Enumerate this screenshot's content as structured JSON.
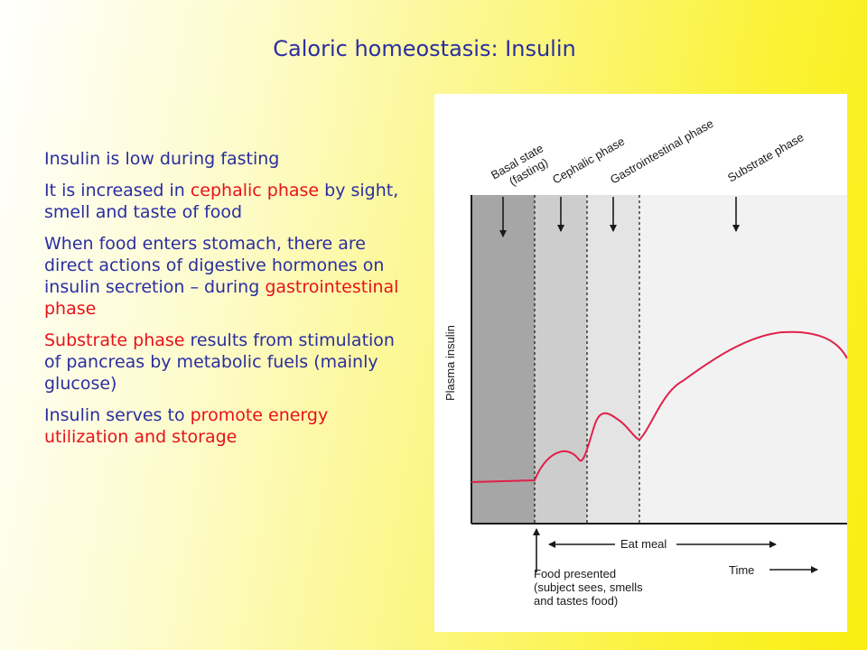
{
  "title": "Caloric homeostasis: Insulin",
  "bullets": [
    {
      "parts": [
        {
          "text": "Insulin is low during fasting",
          "color": "#2a2ea0"
        }
      ]
    },
    {
      "parts": [
        {
          "text": "It is increased in ",
          "color": "#2a2ea0"
        },
        {
          "text": "cephalic phase",
          "color": "#e8111a"
        },
        {
          "text": " by sight, smell and taste of food",
          "color": "#2a2ea0"
        }
      ]
    },
    {
      "parts": [
        {
          "text": "When food enters stomach, there are direct actions of digestive hormones on insulin secretion – during ",
          "color": "#2a2ea0"
        },
        {
          "text": "gastrointestinal phase",
          "color": "#e8111a"
        }
      ]
    },
    {
      "parts": [
        {
          "text": "Substrate phase",
          "color": "#e8111a"
        },
        {
          "text": " results from stimulation of pancreas by metabolic fuels (mainly glucose)",
          "color": "#2a2ea0"
        }
      ]
    },
    {
      "parts": [
        {
          "text": "Insulin serves to ",
          "color": "#2a2ea0"
        },
        {
          "text": "promote energy utilization and storage",
          "color": "#e8111a"
        }
      ]
    }
  ],
  "figure": {
    "phases": [
      {
        "line1": "Basal state",
        "line2": "(fasting)"
      },
      {
        "line1": "Cephalic phase",
        "line2": ""
      },
      {
        "line1": "Gastrointestinal phase",
        "line2": ""
      },
      {
        "line1": "Substrate phase",
        "line2": ""
      }
    ],
    "y_axis_label": "Plasma insulin",
    "eat_meal_label": "Eat meal",
    "time_label": "Time",
    "food_presented": [
      "Food presented",
      "(subject sees, smells",
      "and tastes food)"
    ],
    "colors": {
      "basal": "#a6a6a6",
      "cephalic": "#cdcdcd",
      "gastro": "#e4e4e4",
      "substrate": "#f2f2f2",
      "curve": "#e0204a"
    }
  }
}
